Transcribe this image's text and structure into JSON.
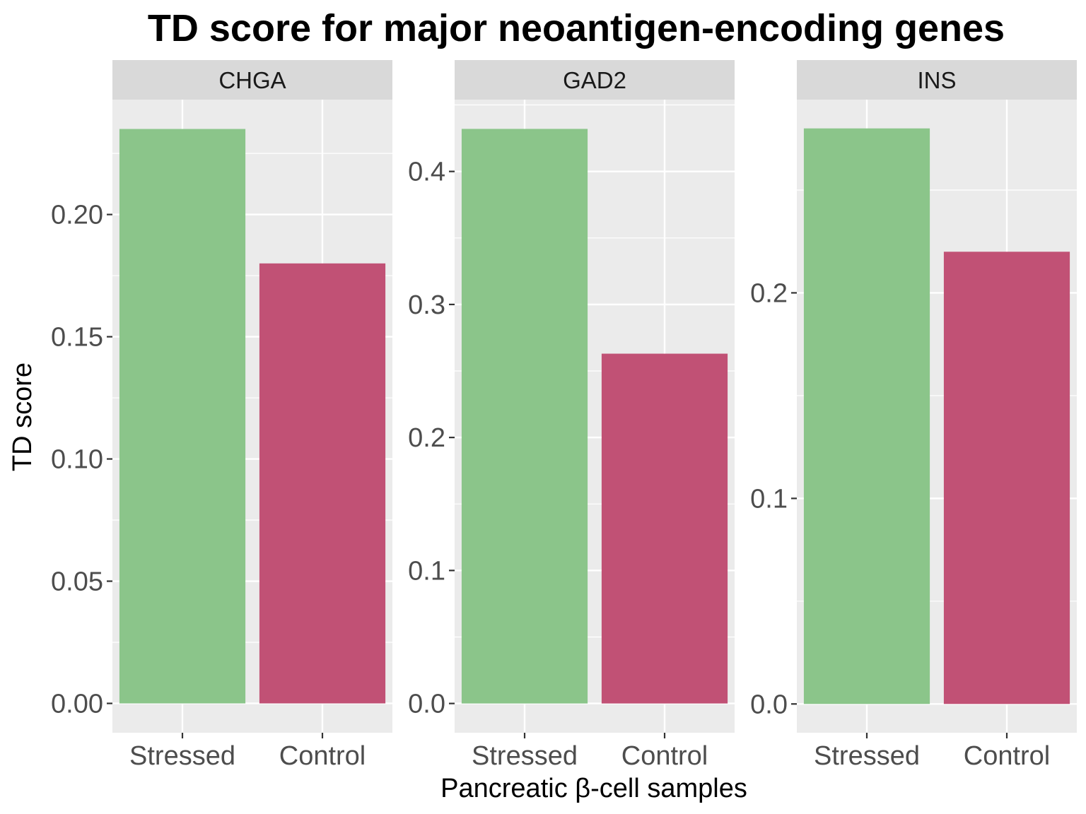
{
  "chart_data": {
    "type": "bar",
    "title": "TD score for major neoantigen-encoding genes",
    "xlabel": "Pancreatic β-cell samples",
    "ylabel": "TD score",
    "categories": [
      "Stressed",
      "Control"
    ],
    "colors": [
      "#8bc58a",
      "#c15175"
    ],
    "grid": true,
    "legend": "none",
    "panels": [
      {
        "name": "CHGA",
        "values": [
          0.235,
          0.18
        ],
        "ylim": [
          -0.012,
          0.247
        ],
        "yticks": [
          0.0,
          0.05,
          0.1,
          0.15,
          0.2
        ],
        "ytick_labels": [
          "0.00",
          "0.05",
          "0.10",
          "0.15",
          "0.20"
        ]
      },
      {
        "name": "GAD2",
        "values": [
          0.432,
          0.263
        ],
        "ylim": [
          -0.022,
          0.454
        ],
        "yticks": [
          0.0,
          0.1,
          0.2,
          0.3,
          0.4
        ],
        "ytick_labels": [
          "0.0",
          "0.1",
          "0.2",
          "0.3",
          "0.4"
        ]
      },
      {
        "name": "INS",
        "values": [
          0.28,
          0.22
        ],
        "ylim": [
          -0.014,
          0.294
        ],
        "yticks": [
          0.0,
          0.1,
          0.2
        ],
        "ytick_labels": [
          "0.0",
          "0.1",
          "0.2"
        ]
      }
    ]
  }
}
